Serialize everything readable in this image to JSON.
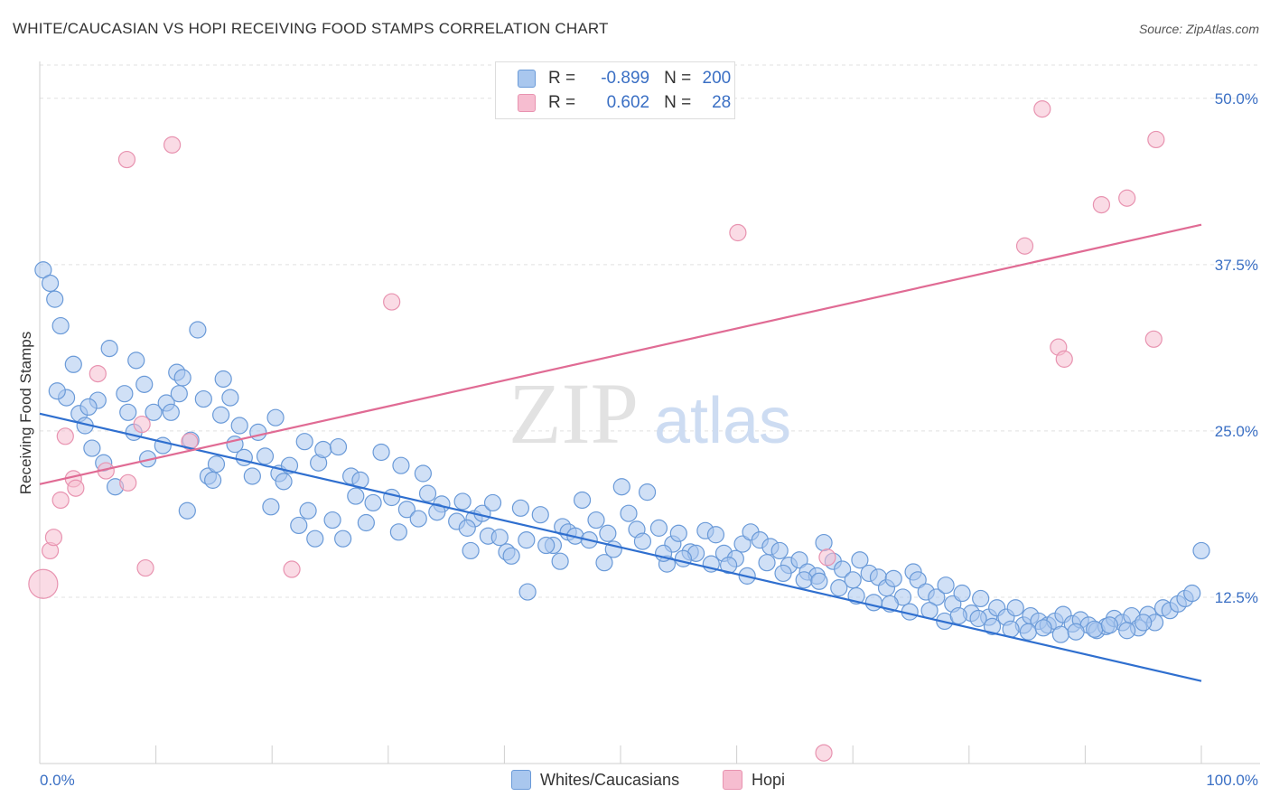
{
  "title": "WHITE/CAUCASIAN VS HOPI RECEIVING FOOD STAMPS CORRELATION CHART",
  "source": "Source: ZipAtlas.com",
  "watermark": {
    "zip": "ZIP",
    "atlas": "atlas"
  },
  "legend": {
    "rows": [
      {
        "r_label": "R =",
        "r_value": "-0.899",
        "n_label": "N =",
        "n_value": "200"
      },
      {
        "r_label": "R =",
        "r_value": "0.602",
        "n_label": "N =",
        "n_value": "28"
      }
    ]
  },
  "bottom_legend": {
    "series1": "Whites/Caucasians",
    "series2": "Hopi"
  },
  "colors": {
    "blue_fill": "#a9c7ee",
    "blue_stroke": "#6a9ad8",
    "blue_line": "#2f6fcf",
    "pink_fill": "#f6bdd0",
    "pink_stroke": "#e893b0",
    "pink_line": "#e06b94",
    "axis_label": "#3a6fc4"
  },
  "chart_data": {
    "type": "scatter",
    "title": "WHITE/CAUCASIAN VS HOPI RECEIVING FOOD STAMPS CORRELATION CHART",
    "xlabel": "",
    "ylabel": "Receiving Food Stamps",
    "xlim": [
      0,
      100
    ],
    "ylim": [
      0,
      52.5
    ],
    "x_tick_labels": [
      "0.0%",
      "100.0%"
    ],
    "y_ticks": [
      12.5,
      25.0,
      37.5,
      50.0
    ],
    "y_tick_labels": [
      "12.5%",
      "25.0%",
      "37.5%",
      "50.0%"
    ],
    "grid": true,
    "legend_placement": "top-center",
    "series": [
      {
        "name": "Whites/Caucasians",
        "r": -0.899,
        "n": 200,
        "trend": {
          "x": [
            0,
            100
          ],
          "y": [
            26.3,
            6.2
          ]
        },
        "points": [
          [
            0.3,
            37.1
          ],
          [
            0.9,
            36.1
          ],
          [
            1.3,
            34.9
          ],
          [
            1.8,
            32.9
          ],
          [
            2.9,
            30.0
          ],
          [
            2.3,
            27.5
          ],
          [
            3.4,
            26.3
          ],
          [
            3.9,
            25.4
          ],
          [
            4.5,
            23.7
          ],
          [
            5.5,
            22.6
          ],
          [
            6.5,
            20.8
          ],
          [
            8.3,
            30.3
          ],
          [
            7.3,
            27.8
          ],
          [
            5.0,
            27.3
          ],
          [
            7.6,
            26.4
          ],
          [
            8.1,
            24.9
          ],
          [
            9.8,
            26.4
          ],
          [
            9.3,
            22.9
          ],
          [
            10.9,
            27.1
          ],
          [
            11.3,
            26.4
          ],
          [
            10.6,
            23.9
          ],
          [
            11.8,
            29.4
          ],
          [
            12.3,
            29.0
          ],
          [
            12.7,
            19.0
          ],
          [
            13.6,
            32.6
          ],
          [
            14.1,
            27.4
          ],
          [
            14.5,
            21.6
          ],
          [
            14.9,
            21.3
          ],
          [
            15.2,
            22.5
          ],
          [
            16.4,
            27.5
          ],
          [
            16.8,
            24.0
          ],
          [
            15.6,
            26.2
          ],
          [
            17.6,
            23.0
          ],
          [
            18.3,
            21.6
          ],
          [
            18.8,
            24.9
          ],
          [
            19.9,
            19.3
          ],
          [
            20.6,
            21.8
          ],
          [
            21.5,
            22.4
          ],
          [
            21.0,
            21.2
          ],
          [
            22.3,
            17.9
          ],
          [
            23.1,
            19.0
          ],
          [
            23.7,
            16.9
          ],
          [
            24.0,
            22.6
          ],
          [
            24.4,
            23.6
          ],
          [
            25.2,
            18.3
          ],
          [
            26.1,
            16.9
          ],
          [
            26.8,
            21.6
          ],
          [
            27.6,
            21.3
          ],
          [
            28.1,
            18.1
          ],
          [
            29.4,
            23.4
          ],
          [
            30.3,
            20.0
          ],
          [
            30.9,
            17.4
          ],
          [
            31.6,
            19.1
          ],
          [
            32.6,
            18.4
          ],
          [
            33.4,
            20.3
          ],
          [
            34.6,
            19.5
          ],
          [
            35.9,
            18.2
          ],
          [
            36.4,
            19.7
          ],
          [
            37.4,
            18.4
          ],
          [
            37.1,
            16.0
          ],
          [
            38.1,
            18.8
          ],
          [
            39.0,
            19.6
          ],
          [
            40.2,
            15.9
          ],
          [
            40.6,
            15.6
          ],
          [
            41.4,
            19.2
          ],
          [
            42.0,
            12.9
          ],
          [
            43.1,
            18.7
          ],
          [
            44.2,
            16.4
          ],
          [
            45.0,
            17.8
          ],
          [
            45.5,
            17.4
          ],
          [
            46.7,
            19.8
          ],
          [
            47.9,
            18.3
          ],
          [
            48.9,
            17.3
          ],
          [
            50.1,
            20.8
          ],
          [
            50.7,
            18.8
          ],
          [
            51.4,
            17.6
          ],
          [
            52.3,
            20.4
          ],
          [
            53.3,
            17.7
          ],
          [
            54.0,
            15.0
          ],
          [
            54.5,
            16.5
          ],
          [
            55.0,
            17.3
          ],
          [
            56.0,
            15.9
          ],
          [
            56.5,
            15.8
          ],
          [
            57.3,
            17.5
          ],
          [
            58.2,
            17.2
          ],
          [
            58.9,
            15.8
          ],
          [
            59.9,
            15.4
          ],
          [
            60.5,
            16.5
          ],
          [
            61.2,
            17.4
          ],
          [
            62.0,
            16.8
          ],
          [
            62.9,
            16.3
          ],
          [
            63.7,
            16.0
          ],
          [
            64.5,
            14.9
          ],
          [
            65.4,
            15.3
          ],
          [
            66.1,
            14.4
          ],
          [
            66.9,
            14.1
          ],
          [
            67.5,
            16.6
          ],
          [
            68.3,
            15.2
          ],
          [
            69.1,
            14.6
          ],
          [
            70.0,
            13.8
          ],
          [
            70.6,
            15.3
          ],
          [
            71.4,
            14.3
          ],
          [
            72.2,
            14.0
          ],
          [
            72.9,
            13.2
          ],
          [
            73.5,
            13.9
          ],
          [
            74.3,
            12.5
          ],
          [
            75.2,
            14.4
          ],
          [
            75.6,
            13.8
          ],
          [
            76.3,
            12.9
          ],
          [
            77.2,
            12.5
          ],
          [
            78.0,
            13.4
          ],
          [
            78.6,
            12.0
          ],
          [
            79.4,
            12.8
          ],
          [
            80.2,
            11.3
          ],
          [
            81.0,
            12.4
          ],
          [
            81.7,
            11.0
          ],
          [
            82.4,
            11.7
          ],
          [
            83.2,
            11.0
          ],
          [
            84.0,
            11.7
          ],
          [
            84.7,
            10.4
          ],
          [
            85.3,
            11.1
          ],
          [
            86.0,
            10.7
          ],
          [
            86.8,
            10.4
          ],
          [
            87.4,
            10.7
          ],
          [
            88.1,
            11.2
          ],
          [
            88.9,
            10.5
          ],
          [
            89.6,
            10.8
          ],
          [
            90.3,
            10.4
          ],
          [
            91.0,
            10.0
          ],
          [
            91.8,
            10.3
          ],
          [
            92.5,
            10.9
          ],
          [
            93.2,
            10.6
          ],
          [
            94.0,
            11.1
          ],
          [
            94.6,
            10.2
          ],
          [
            95.4,
            11.2
          ],
          [
            96.0,
            10.6
          ],
          [
            96.7,
            11.7
          ],
          [
            97.3,
            11.5
          ],
          [
            98.0,
            12.0
          ],
          [
            98.6,
            12.4
          ],
          [
            99.2,
            12.8
          ],
          [
            100.0,
            16.0
          ],
          [
            1.5,
            28.0
          ],
          [
            4.2,
            26.8
          ],
          [
            6.0,
            31.2
          ],
          [
            9.0,
            28.5
          ],
          [
            12.0,
            27.8
          ],
          [
            13.0,
            24.3
          ],
          [
            15.8,
            28.9
          ],
          [
            17.2,
            25.4
          ],
          [
            19.4,
            23.1
          ],
          [
            20.3,
            26.0
          ],
          [
            22.8,
            24.2
          ],
          [
            25.7,
            23.8
          ],
          [
            27.2,
            20.1
          ],
          [
            28.7,
            19.6
          ],
          [
            31.1,
            22.4
          ],
          [
            33.0,
            21.8
          ],
          [
            34.2,
            18.9
          ],
          [
            36.8,
            17.7
          ],
          [
            38.6,
            17.1
          ],
          [
            39.6,
            17.0
          ],
          [
            41.9,
            16.8
          ],
          [
            43.6,
            16.4
          ],
          [
            44.8,
            15.2
          ],
          [
            46.1,
            17.1
          ],
          [
            47.3,
            16.8
          ],
          [
            48.6,
            15.1
          ],
          [
            49.4,
            16.1
          ],
          [
            51.9,
            16.7
          ],
          [
            53.7,
            15.8
          ],
          [
            55.4,
            15.4
          ],
          [
            57.8,
            15.0
          ],
          [
            59.3,
            14.9
          ],
          [
            60.9,
            14.1
          ],
          [
            62.6,
            15.1
          ],
          [
            64.0,
            14.3
          ],
          [
            65.8,
            13.8
          ],
          [
            67.1,
            13.7
          ],
          [
            68.8,
            13.2
          ],
          [
            70.3,
            12.6
          ],
          [
            71.8,
            12.1
          ],
          [
            73.2,
            12.0
          ],
          [
            74.9,
            11.4
          ],
          [
            76.6,
            11.5
          ],
          [
            77.9,
            10.7
          ],
          [
            79.1,
            11.1
          ],
          [
            80.8,
            10.9
          ],
          [
            82.0,
            10.3
          ],
          [
            83.6,
            10.1
          ],
          [
            85.1,
            9.9
          ],
          [
            86.4,
            10.2
          ],
          [
            87.9,
            9.7
          ],
          [
            89.2,
            9.9
          ],
          [
            90.8,
            10.1
          ],
          [
            92.1,
            10.4
          ],
          [
            93.6,
            10.0
          ],
          [
            95.0,
            10.6
          ]
        ]
      },
      {
        "name": "Hopi",
        "r": 0.602,
        "n": 28,
        "trend": {
          "x": [
            0,
            100
          ],
          "y": [
            21.0,
            40.5
          ]
        },
        "points": [
          [
            0.3,
            13.5
          ],
          [
            0.9,
            16.0
          ],
          [
            1.2,
            17.0
          ],
          [
            1.8,
            19.8
          ],
          [
            2.2,
            24.6
          ],
          [
            2.9,
            21.4
          ],
          [
            3.1,
            20.7
          ],
          [
            5.0,
            29.3
          ],
          [
            5.7,
            22.0
          ],
          [
            7.6,
            21.1
          ],
          [
            8.8,
            25.5
          ],
          [
            9.1,
            14.7
          ],
          [
            11.4,
            46.5
          ],
          [
            12.9,
            24.2
          ],
          [
            21.7,
            14.6
          ],
          [
            30.3,
            34.7
          ],
          [
            60.1,
            39.9
          ],
          [
            67.5,
            0.8
          ],
          [
            84.8,
            38.9
          ],
          [
            86.3,
            49.2
          ],
          [
            87.7,
            31.3
          ],
          [
            88.2,
            30.4
          ],
          [
            91.4,
            42.0
          ],
          [
            93.6,
            42.5
          ],
          [
            95.9,
            31.9
          ],
          [
            96.1,
            46.9
          ],
          [
            7.5,
            45.4
          ],
          [
            67.8,
            15.5
          ]
        ]
      }
    ]
  }
}
